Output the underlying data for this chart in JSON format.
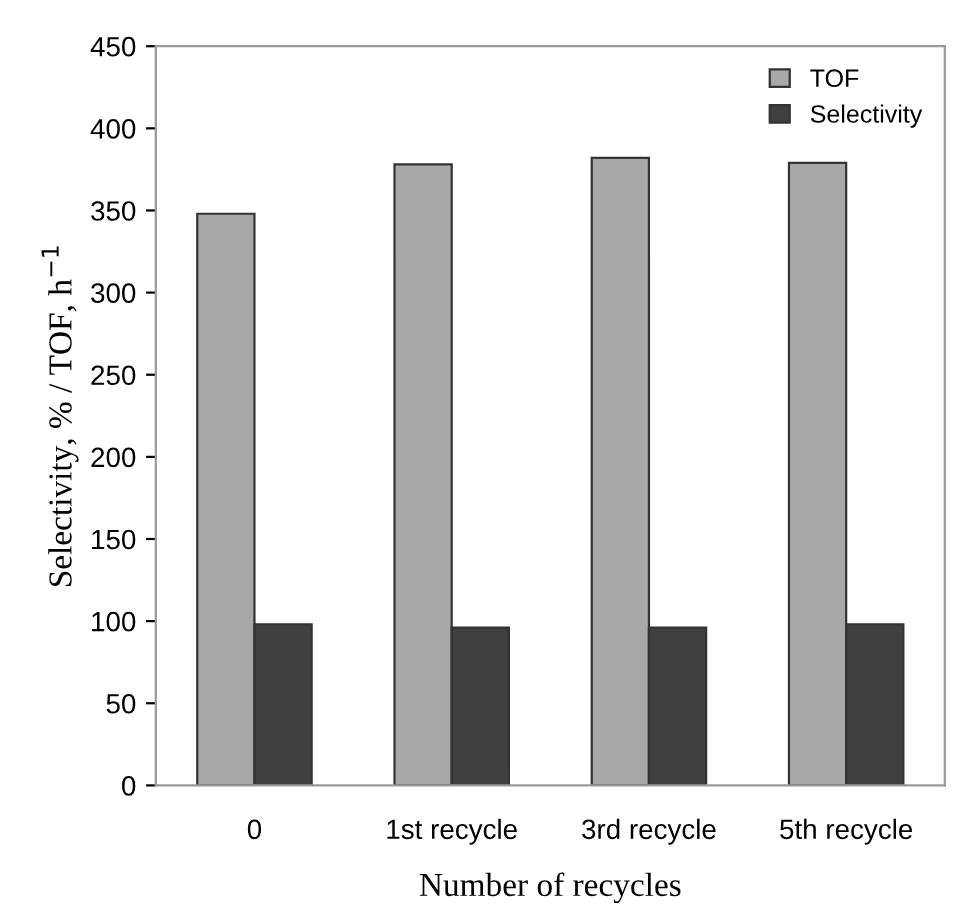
{
  "chart_data": {
    "type": "bar",
    "xlabel": "Number of recycles",
    "ylabel": "Selectivity, % / TOF, h$^{−1}$",
    "categories": [
      "0",
      "1st recycle",
      "3rd recycle",
      "5th recycle"
    ],
    "series": [
      {
        "name": "TOF",
        "color": "#a8a8a8",
        "values": [
          348,
          378,
          382,
          379
        ]
      },
      {
        "name": "Selectivity",
        "color": "#404040",
        "values": [
          98,
          96,
          96,
          98
        ]
      }
    ],
    "ylim": [
      0,
      450
    ],
    "yticks": [
      0,
      50,
      100,
      150,
      200,
      250,
      300,
      350,
      400,
      450
    ],
    "grid": false,
    "legend": "top right"
  }
}
